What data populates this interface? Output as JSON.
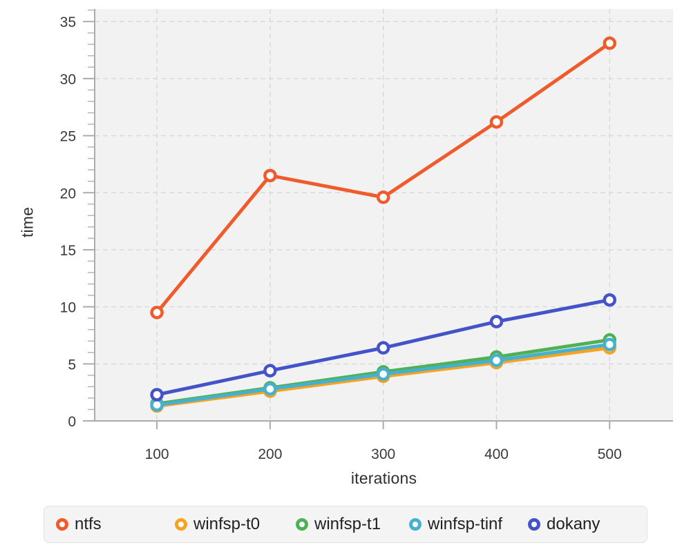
{
  "chart_data": {
    "type": "line",
    "title": "",
    "xlabel": "iterations",
    "ylabel": "time",
    "x": [
      100,
      200,
      300,
      400,
      500
    ],
    "xticks": [
      100,
      200,
      300,
      400,
      500
    ],
    "yticks": [
      0,
      5,
      10,
      15,
      20,
      25,
      30,
      35
    ],
    "xlim": [
      45,
      556
    ],
    "ylim": [
      0,
      36.1
    ],
    "y_minor_step": 1,
    "grid": "dashed",
    "legend_position": "bottom",
    "series": [
      {
        "name": "ntfs",
        "color": "#f05b2c",
        "values": [
          9.5,
          21.5,
          19.6,
          26.2,
          33.1
        ]
      },
      {
        "name": "winfsp-t0",
        "color": "#f5a321",
        "values": [
          1.3,
          2.6,
          3.9,
          5.1,
          6.4
        ]
      },
      {
        "name": "winfsp-t1",
        "color": "#4fb155",
        "values": [
          1.5,
          2.9,
          4.3,
          5.6,
          7.1
        ]
      },
      {
        "name": "winfsp-tinf",
        "color": "#46b1cf",
        "values": [
          1.4,
          2.8,
          4.1,
          5.3,
          6.7
        ]
      },
      {
        "name": "dokany",
        "color": "#4453c8",
        "values": [
          2.3,
          4.4,
          6.4,
          8.7,
          10.6
        ]
      }
    ]
  },
  "colors": {
    "plot_bg": "#f2f2f2",
    "grid": "#d9d9d9",
    "axis": "#ababab",
    "minor_tick": "#b5b5b5",
    "tick_label": "#3a3a3a",
    "marker_fill": "#ffffff",
    "legend_bg": "#f4f4f4",
    "legend_border": "#e2e2e2"
  }
}
